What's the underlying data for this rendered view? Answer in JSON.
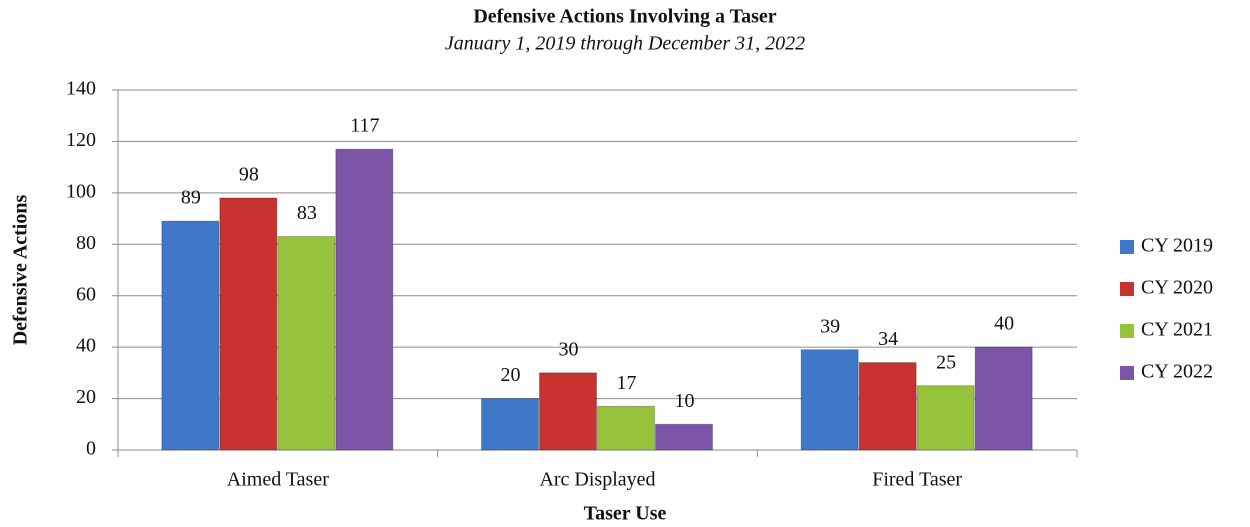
{
  "chart_data": {
    "type": "bar",
    "title": "Defensive Actions Involving a Taser",
    "subtitle": "January 1, 2019 through December 31, 2022",
    "xlabel": "Taser Use",
    "ylabel": "Defensive Actions",
    "categories": [
      "Aimed Taser",
      "Arc Displayed",
      "Fired Taser"
    ],
    "series": [
      {
        "name": "CY 2019",
        "color": "#3f78c8",
        "values": [
          89,
          20,
          39
        ]
      },
      {
        "name": "CY 2020",
        "color": "#c8322f",
        "values": [
          98,
          30,
          34
        ]
      },
      {
        "name": "CY 2021",
        "color": "#97c23c",
        "values": [
          83,
          17,
          25
        ]
      },
      {
        "name": "CY 2022",
        "color": "#7c55a8",
        "values": [
          117,
          10,
          40
        ]
      }
    ],
    "ylim": [
      0,
      140
    ],
    "yticks": [
      0,
      20,
      40,
      60,
      80,
      100,
      120,
      140
    ],
    "grid": true,
    "legend": "right"
  }
}
